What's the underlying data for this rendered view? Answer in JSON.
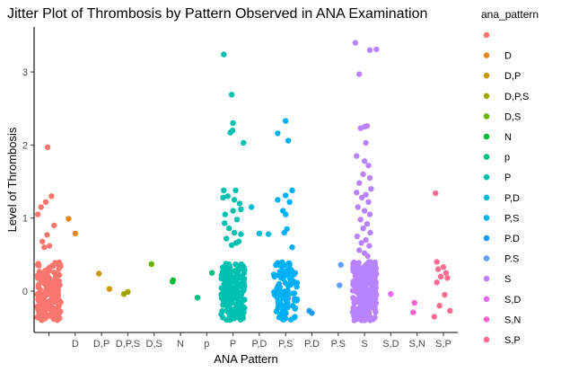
{
  "chart_data": {
    "type": "scatter",
    "subtype": "jitter",
    "title": "Jitter Plot of Thrombosis by Pattern Observed in ANA Examination",
    "xlabel": "ANA Pattern",
    "ylabel": "Level of Thrombosis",
    "legend_title": "ana_pattern",
    "legend_position": "right",
    "grid": false,
    "ylim": [
      -0.6,
      3.55
    ],
    "yticks": [
      0,
      1,
      2,
      3
    ],
    "categories": [
      "",
      "D",
      "D,P",
      "D,P,S",
      "D,S",
      "N",
      "p",
      "P",
      "P,D",
      "P,S",
      "P.D",
      "P.S",
      "S",
      "S,D",
      "S,N",
      "S,P"
    ],
    "colors": [
      "#F8766D",
      "#E7861B",
      "#C99800",
      "#A3A500",
      "#6BB100",
      "#00BA38",
      "#00BF7D",
      "#00C0AF",
      "#00BCD8",
      "#00B0F6",
      "#1A9DF8",
      "#619CFF",
      "#B983FF",
      "#E76BF3",
      "#FD61D1",
      "#FF6C91"
    ],
    "dense_bands": [
      {
        "category": "",
        "y_min": -0.4,
        "y_max": 0.4,
        "count": 180
      },
      {
        "category": "P",
        "y_min": -0.4,
        "y_max": 0.4,
        "count": 200
      },
      {
        "category": "P,S",
        "y_min": -0.4,
        "y_max": 0.4,
        "count": 110
      },
      {
        "category": "S",
        "y_min": -0.4,
        "y_max": 0.4,
        "count": 320
      }
    ],
    "points": [
      {
        "category": "",
        "x": -0.42,
        "y": 1.05
      },
      {
        "category": "",
        "x": -0.3,
        "y": 1.15
      },
      {
        "category": "",
        "x": -0.12,
        "y": 1.22
      },
      {
        "category": "",
        "x": 0.1,
        "y": 1.3
      },
      {
        "category": "",
        "x": -0.05,
        "y": 1.97
      },
      {
        "category": "",
        "x": -0.25,
        "y": 0.68
      },
      {
        "category": "",
        "x": -0.18,
        "y": 0.6
      },
      {
        "category": "",
        "x": 0.02,
        "y": 0.62
      },
      {
        "category": "",
        "x": -0.07,
        "y": 0.77
      },
      {
        "category": "",
        "x": 0.2,
        "y": 0.9
      },
      {
        "category": "D",
        "x": -0.25,
        "y": 0.99
      },
      {
        "category": "D",
        "x": 0.0,
        "y": 0.79
      },
      {
        "category": "D,P",
        "x": -0.1,
        "y": 0.24
      },
      {
        "category": "D,P",
        "x": 0.3,
        "y": 0.03
      },
      {
        "category": "D,P,S",
        "x": -0.15,
        "y": -0.04
      },
      {
        "category": "D,P,S",
        "x": 0.0,
        "y": -0.01
      },
      {
        "category": "D,S",
        "x": -0.1,
        "y": 0.37
      },
      {
        "category": "N",
        "x": -0.3,
        "y": 0.13
      },
      {
        "category": "N",
        "x": -0.28,
        "y": 0.15
      },
      {
        "category": "p",
        "x": -0.35,
        "y": -0.09
      },
      {
        "category": "p",
        "x": 0.2,
        "y": 0.25
      },
      {
        "category": "P",
        "x": -0.35,
        "y": 3.24
      },
      {
        "category": "P",
        "x": -0.05,
        "y": 2.69
      },
      {
        "category": "P",
        "x": 0.0,
        "y": 2.3
      },
      {
        "category": "P",
        "x": -0.1,
        "y": 2.17
      },
      {
        "category": "P",
        "x": -0.02,
        "y": 2.2
      },
      {
        "category": "P",
        "x": 0.4,
        "y": 2.03
      },
      {
        "category": "P",
        "x": -0.35,
        "y": 1.38
      },
      {
        "category": "P",
        "x": -0.38,
        "y": 1.28
      },
      {
        "category": "P",
        "x": 0.1,
        "y": 1.38
      },
      {
        "category": "P",
        "x": -0.2,
        "y": 1.3
      },
      {
        "category": "P",
        "x": 0.05,
        "y": 1.25
      },
      {
        "category": "P",
        "x": 0.25,
        "y": 1.2
      },
      {
        "category": "P",
        "x": 0.3,
        "y": 1.12
      },
      {
        "category": "P",
        "x": -0.3,
        "y": 1.05
      },
      {
        "category": "P",
        "x": 0.0,
        "y": 1.1
      },
      {
        "category": "P",
        "x": 0.15,
        "y": 0.98
      },
      {
        "category": "P",
        "x": -0.32,
        "y": 0.93
      },
      {
        "category": "P",
        "x": -0.15,
        "y": 0.86
      },
      {
        "category": "P",
        "x": 0.05,
        "y": 0.8
      },
      {
        "category": "P",
        "x": 0.3,
        "y": 0.78
      },
      {
        "category": "P",
        "x": -0.25,
        "y": 0.72
      },
      {
        "category": "P",
        "x": 0.22,
        "y": 0.68
      },
      {
        "category": "P",
        "x": -0.05,
        "y": 0.63
      },
      {
        "category": "P",
        "x": 0.12,
        "y": 0.66
      },
      {
        "category": "P,D",
        "x": -0.3,
        "y": 1.15
      },
      {
        "category": "P,D",
        "x": 0.0,
        "y": 0.79
      },
      {
        "category": "P,D",
        "x": 0.35,
        "y": 0.78
      },
      {
        "category": "P,S",
        "x": -0.3,
        "y": 2.16
      },
      {
        "category": "P,S",
        "x": 0.0,
        "y": 2.33
      },
      {
        "category": "P,S",
        "x": 0.1,
        "y": 2.06
      },
      {
        "category": "P,S",
        "x": 0.0,
        "y": 1.31
      },
      {
        "category": "P,S",
        "x": 0.25,
        "y": 1.38
      },
      {
        "category": "P,S",
        "x": -0.3,
        "y": 1.25
      },
      {
        "category": "P,S",
        "x": 0.15,
        "y": 1.22
      },
      {
        "category": "P,S",
        "x": -0.1,
        "y": 1.1
      },
      {
        "category": "P,S",
        "x": 0.0,
        "y": 1.05
      },
      {
        "category": "P,S",
        "x": 0.05,
        "y": 0.85
      },
      {
        "category": "P,S",
        "x": -0.05,
        "y": 0.8
      },
      {
        "category": "P,S",
        "x": 0.25,
        "y": 0.6
      },
      {
        "category": "P.D",
        "x": -0.1,
        "y": -0.27
      },
      {
        "category": "P.D",
        "x": 0.0,
        "y": -0.3
      },
      {
        "category": "P.S",
        "x": 0.1,
        "y": 0.36
      },
      {
        "category": "P.S",
        "x": 0.05,
        "y": 0.08
      },
      {
        "category": "S",
        "x": -0.35,
        "y": 3.4
      },
      {
        "category": "S",
        "x": 0.2,
        "y": 3.3
      },
      {
        "category": "S",
        "x": 0.45,
        "y": 3.31
      },
      {
        "category": "S",
        "x": -0.2,
        "y": 2.97
      },
      {
        "category": "S",
        "x": 0.0,
        "y": 2.25
      },
      {
        "category": "S",
        "x": 0.1,
        "y": 2.26
      },
      {
        "category": "S",
        "x": -0.15,
        "y": 2.23
      },
      {
        "category": "S",
        "x": 0.05,
        "y": 2.03
      },
      {
        "category": "S",
        "x": -0.3,
        "y": 1.85
      },
      {
        "category": "S",
        "x": 0.0,
        "y": 1.78
      },
      {
        "category": "S",
        "x": 0.15,
        "y": 1.72
      },
      {
        "category": "S",
        "x": -0.05,
        "y": 1.6
      },
      {
        "category": "S",
        "x": 0.2,
        "y": 1.55
      },
      {
        "category": "S",
        "x": -0.2,
        "y": 1.48
      },
      {
        "category": "S",
        "x": 0.25,
        "y": 1.4
      },
      {
        "category": "S",
        "x": -0.3,
        "y": 1.35
      },
      {
        "category": "S",
        "x": 0.05,
        "y": 1.32
      },
      {
        "category": "S",
        "x": -0.1,
        "y": 1.28
      },
      {
        "category": "S",
        "x": 0.15,
        "y": 1.22
      },
      {
        "category": "S",
        "x": -0.25,
        "y": 1.15
      },
      {
        "category": "S",
        "x": 0.0,
        "y": 1.1
      },
      {
        "category": "S",
        "x": 0.2,
        "y": 1.05
      },
      {
        "category": "S",
        "x": -0.15,
        "y": 0.98
      },
      {
        "category": "S",
        "x": 0.1,
        "y": 0.92
      },
      {
        "category": "S",
        "x": -0.05,
        "y": 0.86
      },
      {
        "category": "S",
        "x": 0.22,
        "y": 0.8
      },
      {
        "category": "S",
        "x": -0.28,
        "y": 0.75
      },
      {
        "category": "S",
        "x": 0.05,
        "y": 0.7
      },
      {
        "category": "S",
        "x": -0.12,
        "y": 0.66
      },
      {
        "category": "S",
        "x": 0.18,
        "y": 0.62
      },
      {
        "category": "S",
        "x": -0.2,
        "y": 0.56
      },
      {
        "category": "S",
        "x": 0.0,
        "y": 0.52
      },
      {
        "category": "S",
        "x": 0.12,
        "y": 0.48
      },
      {
        "category": "S,D",
        "x": 0.0,
        "y": -0.04
      },
      {
        "category": "S,N",
        "x": -0.1,
        "y": -0.16
      },
      {
        "category": "S,N",
        "x": -0.15,
        "y": -0.29
      },
      {
        "category": "S,P",
        "x": -0.3,
        "y": 1.34
      },
      {
        "category": "S,P",
        "x": -0.25,
        "y": 0.4
      },
      {
        "category": "S,P",
        "x": 0.0,
        "y": 0.33
      },
      {
        "category": "S,P",
        "x": -0.2,
        "y": 0.3
      },
      {
        "category": "S,P",
        "x": 0.1,
        "y": 0.25
      },
      {
        "category": "S,P",
        "x": -0.1,
        "y": 0.2
      },
      {
        "category": "S,P",
        "x": 0.15,
        "y": 0.18
      },
      {
        "category": "S,P",
        "x": -0.25,
        "y": 0.12
      },
      {
        "category": "S,P",
        "x": 0.05,
        "y": -0.05
      },
      {
        "category": "S,P",
        "x": -0.15,
        "y": -0.2
      },
      {
        "category": "S,P",
        "x": 0.25,
        "y": -0.27
      },
      {
        "category": "S,P",
        "x": -0.35,
        "y": -0.35
      }
    ]
  }
}
